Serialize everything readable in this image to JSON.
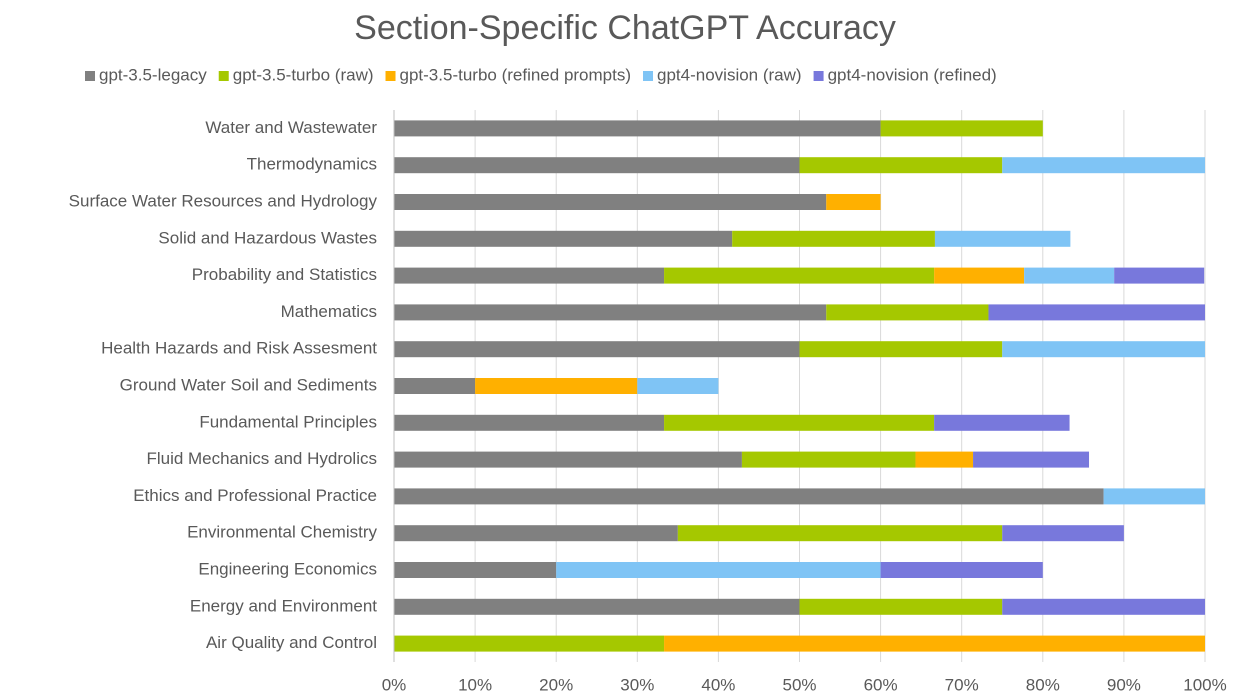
{
  "chart_data": {
    "type": "stacked_barh",
    "title": "Section-Specific ChatGPT Accuracy",
    "categories": [
      "Water and Wastewater",
      "Thermodynamics",
      "Surface Water Resources and Hydrology",
      "Solid and Hazardous Wastes",
      "Probability and Statistics",
      "Mathematics",
      "Health Hazards and Risk Assesment",
      "Ground Water Soil and Sediments",
      "Fundamental Principles",
      "Fluid Mechanics and Hydrolics",
      "Ethics and Professional Practice",
      "Environmental Chemistry",
      "Engineering Economics",
      "Energy and Environment ",
      "Air Quality and Control"
    ],
    "series": [
      {
        "name": "gpt-3.5-legacy",
        "color": "#808080",
        "values": [
          60,
          50,
          53.3,
          41.7,
          33.3,
          53.3,
          50,
          10,
          33.3,
          42.9,
          87.5,
          35,
          20,
          50,
          0
        ]
      },
      {
        "name": "gpt-3.5-turbo (raw)",
        "color": "#a5c800",
        "values": [
          20,
          25,
          0,
          25,
          33.3,
          20,
          25,
          0,
          33.3,
          21.4,
          0,
          40,
          0,
          25,
          33.3
        ]
      },
      {
        "name": "gpt-3.5-turbo (refined prompts)",
        "color": "#ffb000",
        "values": [
          0,
          0,
          6.7,
          0,
          11.1,
          0,
          0,
          20,
          0,
          7.1,
          0,
          0,
          0,
          0,
          66.7
        ]
      },
      {
        "name": "gpt4-novision (raw)",
        "color": "#7fc4f5",
        "values": [
          0,
          25,
          0,
          16.7,
          11.1,
          0,
          25,
          10,
          0,
          0,
          12.5,
          0,
          40,
          0,
          0
        ]
      },
      {
        "name": "gpt4-novision (refined)",
        "color": "#7878dc",
        "values": [
          0,
          0,
          0,
          0,
          11.1,
          26.7,
          0,
          0,
          16.7,
          14.3,
          0,
          15,
          20,
          25,
          0
        ]
      }
    ],
    "xlim": [
      0,
      100
    ],
    "xticks": [
      {
        "value": 0,
        "label": "0%"
      },
      {
        "value": 10,
        "label": "10%"
      },
      {
        "value": 20,
        "label": "20%"
      },
      {
        "value": 30,
        "label": "30%"
      },
      {
        "value": 40,
        "label": "40%"
      },
      {
        "value": 50,
        "label": "50%"
      },
      {
        "value": 60,
        "label": "60%"
      },
      {
        "value": 70,
        "label": "70%"
      },
      {
        "value": 80,
        "label": "80%"
      },
      {
        "value": 90,
        "label": "90%"
      },
      {
        "value": 100,
        "label": "100%"
      }
    ],
    "grid": true,
    "legend": "top"
  }
}
